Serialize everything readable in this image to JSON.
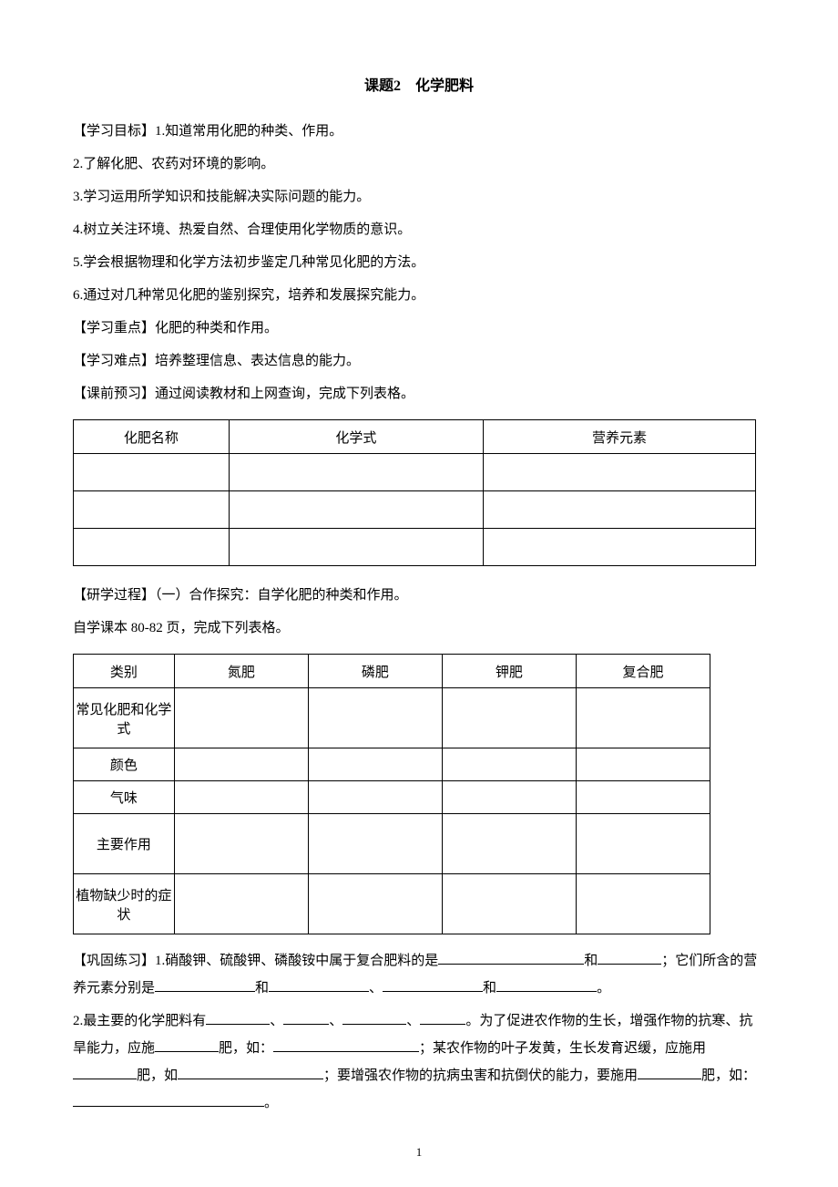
{
  "title": "课题2　化学肥料",
  "goals_heading": "【学习目标】1.知道常用化肥的种类、作用。",
  "goals": [
    "2.了解化肥、农药对环境的影响。",
    "3.学习运用所学知识和技能解决实际问题的能力。",
    "4.树立关注环境、热爱自然、合理使用化学物质的意识。",
    "5.学会根据物理和化学方法初步鉴定几种常见化肥的方法。",
    "6.通过对几种常见化肥的鉴别探究，培养和发展探究能力。"
  ],
  "focus": "【学习重点】化肥的种类和作用。",
  "difficulty": "【学习难点】培养整理信息、表达信息的能力。",
  "preview": "【课前预习】通过阅读教材和上网查询，完成下列表格。",
  "table1": {
    "headers": [
      "化肥名称",
      "化学式",
      "营养元素"
    ]
  },
  "process_heading": "【研学过程】（一）合作探究：自学化肥的种类和作用。",
  "process_sub": "自学课本 80-82 页，完成下列表格。",
  "table2": {
    "headers": [
      "类别",
      "氮肥",
      "磷肥",
      "钾肥",
      "复合肥"
    ],
    "row_labels": [
      "常见化肥和化学式",
      "颜色",
      "气味",
      "主要作用",
      "植物缺少时的症状"
    ]
  },
  "practice_label": "【巩固练习】",
  "q1_a": "1.硝酸钾、硫酸钾、磷酸铵中属于复合肥料的是",
  "q1_b": "和",
  "q1_c": "；它们所含的营养元素分别是",
  "q1_d": "和",
  "q1_e": "、",
  "q1_f": "和",
  "q1_g": "。",
  "q2_a": "2.最主要的化学肥料有",
  "q2_b": "、",
  "q2_c": "、",
  "q2_d": "、",
  "q2_e": "。为了促进农作物的生长，增强作物的抗寒、抗旱能力，应施",
  "q2_f": "肥，如：",
  "q2_g": "；某农作物的叶子发黄，生长发育迟缓，应施用",
  "q2_h": "肥，如",
  "q2_i": "；要增强农作物的抗病虫害和抗倒伏的能力，要施用",
  "q2_j": "肥，如：",
  "q2_k": "。",
  "page_number": "1"
}
